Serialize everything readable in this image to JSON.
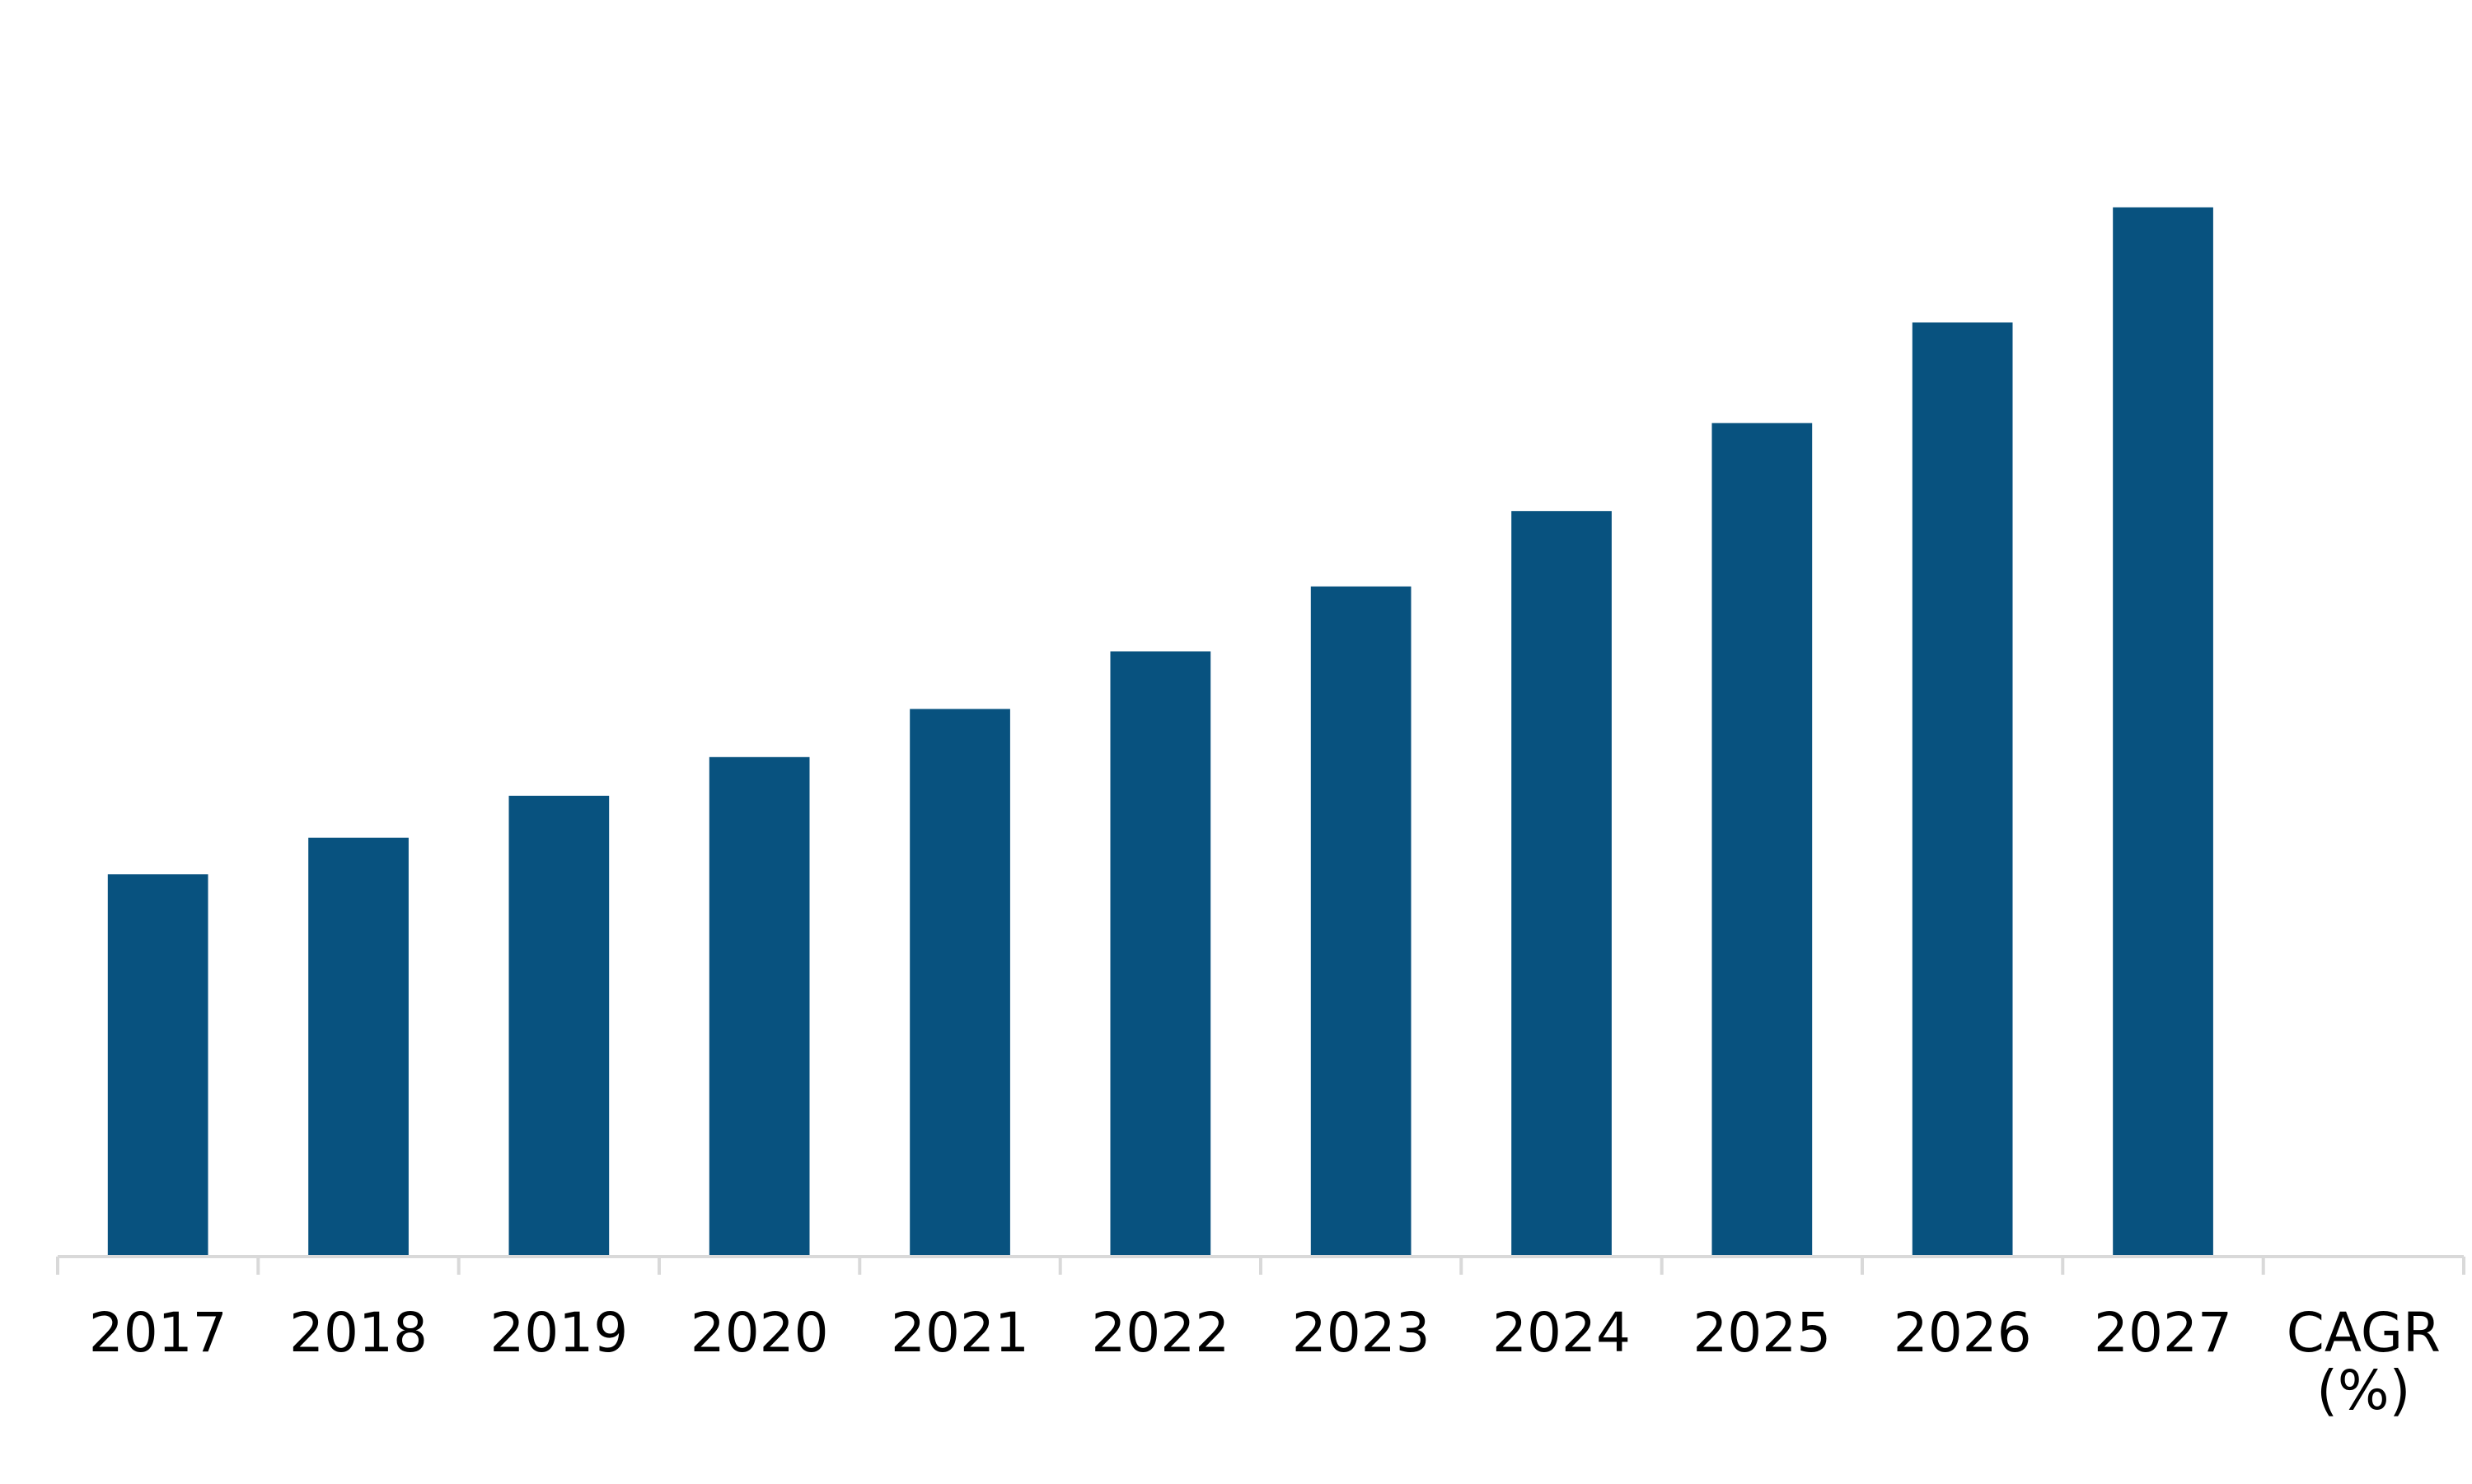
{
  "chart_data": {
    "type": "bar",
    "title": "",
    "xlabel": "",
    "ylabel": "",
    "categories": [
      "2017",
      "2018",
      "2019",
      "2020",
      "2021",
      "2022",
      "2023",
      "2024",
      "2025",
      "2026",
      "2027",
      "CAGR (%)"
    ],
    "category_label_lines": [
      [
        "2017"
      ],
      [
        "2018"
      ],
      [
        "2019"
      ],
      [
        "2020"
      ],
      [
        "2021"
      ],
      [
        "2022"
      ],
      [
        "2023"
      ],
      [
        "2024"
      ],
      [
        "2025"
      ],
      [
        "2026"
      ],
      [
        "2027"
      ],
      [
        "CAGR",
        "(%)"
      ]
    ],
    "values": [
      36.5,
      40,
      44,
      47.7,
      52.3,
      57.8,
      64,
      71.2,
      79.6,
      89.2,
      100.2,
      null
    ],
    "ylim": [
      0,
      120
    ],
    "grid": false,
    "legend": "none",
    "bar_color": "#08527f",
    "axis_color": "#d9d9d9"
  }
}
